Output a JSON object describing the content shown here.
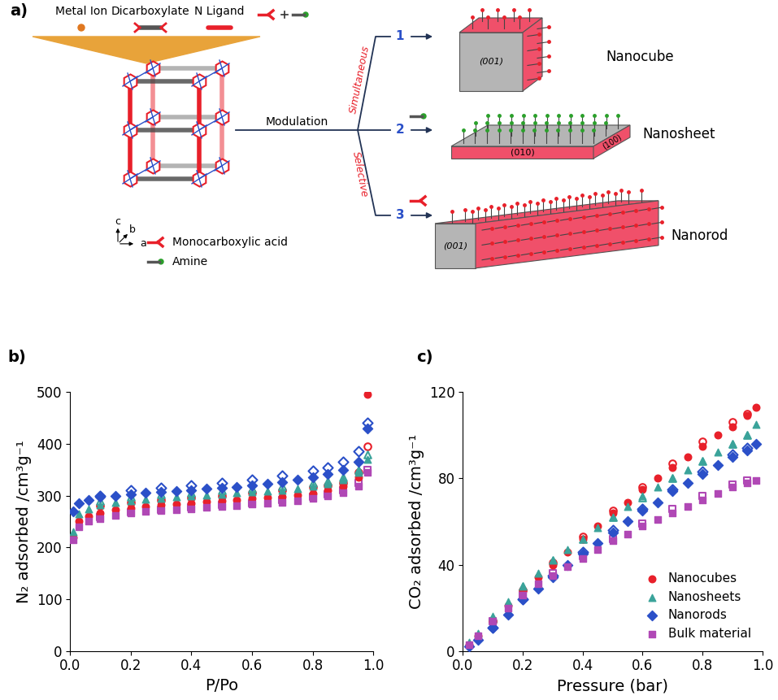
{
  "diagram": {
    "panel_label": "a)",
    "components": [
      "Metal Ion",
      "Dicarboxylate",
      "N Ligand"
    ],
    "modulation": "Modulation",
    "routes": {
      "simultaneous": "Simultaneous",
      "selective": "Selective"
    },
    "products": [
      {
        "number": "1",
        "name": "Nanocube",
        "faces": [
          "(001)"
        ]
      },
      {
        "number": "2",
        "name": "Nanosheet",
        "faces": [
          "(010)",
          "(100)"
        ]
      },
      {
        "number": "3",
        "name": "Nanorod",
        "faces": [
          "(001)"
        ]
      }
    ],
    "axis_letters": [
      "c",
      "b",
      "a"
    ],
    "key": [
      "Monocarboxylic acid",
      "Amine"
    ]
  },
  "chart_data": [
    {
      "type": "scatter",
      "panel_label": "b)",
      "x_label": "P/Po",
      "y_label": "N₂ adsorbed /cm³g⁻¹",
      "xlim": [
        0,
        1
      ],
      "xticks": [
        {
          "value": 0,
          "label": "0.0"
        },
        {
          "value": 0.2,
          "label": "0.2"
        },
        {
          "value": 0.4,
          "label": "0.4"
        },
        {
          "value": 0.6,
          "label": "0.6"
        },
        {
          "value": 0.8,
          "label": "0.8"
        },
        {
          "value": 1,
          "label": "1.0"
        }
      ],
      "ylim": [
        0,
        500
      ],
      "yticks": [
        0,
        100,
        200,
        300,
        400,
        500
      ],
      "x": [
        0.01,
        0.03,
        0.06,
        0.1,
        0.15,
        0.2,
        0.25,
        0.3,
        0.35,
        0.4,
        0.45,
        0.5,
        0.55,
        0.6,
        0.65,
        0.7,
        0.75,
        0.8,
        0.85,
        0.9,
        0.95,
        0.98
      ],
      "desorption_x": [
        0.1,
        0.2,
        0.3,
        0.4,
        0.5,
        0.6,
        0.7,
        0.8,
        0.85,
        0.9,
        0.95,
        0.98
      ],
      "series": [
        {
          "name": "Nanocubes",
          "color": "#e8202a",
          "marker": "circle",
          "values": [
            220,
            250,
            260,
            267,
            272,
            276,
            279,
            282,
            284,
            286,
            288,
            290,
            292,
            294,
            296,
            298,
            301,
            304,
            310,
            318,
            335,
            495
          ],
          "desorption": [
            280,
            287,
            292,
            296,
            300,
            305,
            310,
            316,
            320,
            325,
            345,
            395
          ]
        },
        {
          "name": "Nanosheets",
          "color": "#3aa39a",
          "marker": "triangle",
          "values": [
            230,
            265,
            275,
            282,
            287,
            290,
            293,
            295,
            297,
            299,
            301,
            303,
            305,
            307,
            309,
            311,
            314,
            318,
            323,
            330,
            345,
            370
          ],
          "desorption": [
            290,
            298,
            302,
            306,
            310,
            314,
            318,
            324,
            328,
            335,
            350,
            380
          ]
        },
        {
          "name": "Nanorods",
          "color": "#2b50c8",
          "marker": "diamond",
          "values": [
            270,
            285,
            292,
            297,
            300,
            303,
            305,
            307,
            309,
            311,
            313,
            315,
            317,
            320,
            323,
            326,
            330,
            335,
            342,
            350,
            365,
            430
          ],
          "desorption": [
            300,
            310,
            315,
            320,
            325,
            330,
            338,
            348,
            355,
            365,
            385,
            440
          ]
        },
        {
          "name": "Bulk material",
          "color": "#b048b5",
          "marker": "square",
          "values": [
            215,
            240,
            250,
            256,
            262,
            266,
            269,
            271,
            273,
            275,
            277,
            279,
            281,
            283,
            285,
            287,
            290,
            294,
            299,
            305,
            318,
            345
          ],
          "desorption": [
            258,
            268,
            273,
            278,
            282,
            286,
            291,
            297,
            302,
            310,
            325,
            350
          ]
        }
      ]
    },
    {
      "type": "scatter",
      "panel_label": "c)",
      "x_label": "Pressure (bar)",
      "y_label": "CO₂ adsorbed /cm³g⁻¹",
      "xlim": [
        0,
        1
      ],
      "xticks": [
        {
          "value": 0,
          "label": "0.0"
        },
        {
          "value": 0.2,
          "label": "0.2"
        },
        {
          "value": 0.4,
          "label": "0.4"
        },
        {
          "value": 0.6,
          "label": "0.6"
        },
        {
          "value": 0.8,
          "label": "0.8"
        },
        {
          "value": 1,
          "label": "1.0"
        }
      ],
      "ylim": [
        0,
        120
      ],
      "yticks": [
        0,
        40,
        80,
        120
      ],
      "legend": "lower right",
      "x": [
        0.02,
        0.05,
        0.1,
        0.15,
        0.2,
        0.25,
        0.3,
        0.35,
        0.4,
        0.45,
        0.5,
        0.55,
        0.6,
        0.65,
        0.7,
        0.75,
        0.8,
        0.85,
        0.9,
        0.95,
        0.98
      ],
      "desorption_x": [
        0.1,
        0.2,
        0.3,
        0.4,
        0.5,
        0.6,
        0.7,
        0.8,
        0.9,
        0.95
      ],
      "series": [
        {
          "name": "Nanocubes",
          "color": "#e8202a",
          "marker": "circle",
          "values": [
            3,
            7,
            14,
            21,
            28,
            34,
            40,
            46,
            52,
            58,
            64,
            69,
            75,
            80,
            85,
            90,
            95,
            100,
            104,
            109,
            113
          ],
          "desorption": [
            14,
            28,
            41,
            53,
            65,
            76,
            87,
            97,
            106,
            110
          ]
        },
        {
          "name": "Nanosheets",
          "color": "#3aa39a",
          "marker": "triangle",
          "values": [
            4,
            8,
            16,
            23,
            30,
            36,
            42,
            47,
            52,
            57,
            62,
            67,
            72,
            76,
            80,
            84,
            88,
            92,
            96,
            100,
            105
          ],
          "desorption": [
            15,
            30,
            42,
            52,
            62,
            71,
            80,
            88,
            96,
            100
          ]
        },
        {
          "name": "Nanorods",
          "color": "#2b50c8",
          "marker": "diamond",
          "values": [
            2,
            5,
            11,
            17,
            24,
            29,
            34,
            40,
            45,
            50,
            55,
            60,
            65,
            69,
            74,
            78,
            82,
            86,
            90,
            93,
            96
          ],
          "desorption": [
            11,
            24,
            35,
            46,
            56,
            66,
            75,
            83,
            91,
            94
          ]
        },
        {
          "name": "Bulk material",
          "color": "#b048b5",
          "marker": "square",
          "values": [
            3,
            7,
            14,
            20,
            26,
            31,
            35,
            39,
            43,
            47,
            51,
            54,
            58,
            61,
            64,
            67,
            70,
            73,
            76,
            78,
            79
          ],
          "desorption": [
            14,
            26,
            36,
            44,
            52,
            59,
            66,
            72,
            77,
            79
          ]
        }
      ]
    }
  ]
}
